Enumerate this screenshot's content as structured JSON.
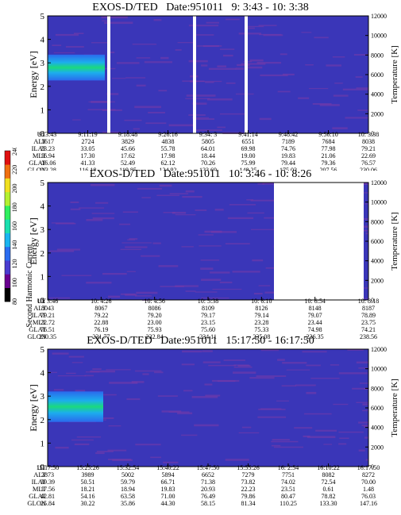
{
  "colors": {
    "background_plot": "#3a36b8",
    "streak": "#7a3aa8",
    "cold_core": "#19e27a",
    "gap": "#ffffff"
  },
  "colorbar": {
    "label": "Second Harmonic Current",
    "ticks": [
      "80",
      "100",
      "120",
      "140",
      "160",
      "180",
      "200",
      "220",
      "240"
    ],
    "levels": [
      "#000000",
      "#6a0090",
      "#4a3cd0",
      "#2a6cf0",
      "#1ab4f0",
      "#1ae0b0",
      "#30f060",
      "#b4f030",
      "#f0e020",
      "#f07010",
      "#e01010"
    ]
  },
  "panels": [
    {
      "title": "EXOS-D/TED   Date:951011   9: 3:43 - 10: 3:38",
      "ylabel_left": "Energy [eV]",
      "ylabel_right": "Temperature [K]",
      "yticks_left": [
        "0",
        "1",
        "2",
        "3",
        "4",
        "5"
      ],
      "yticks_right": [
        "0",
        "2000",
        "4000",
        "6000",
        "8000",
        "10000",
        "12000"
      ],
      "eph_labels": [
        "UT",
        "ALT",
        "ILAT",
        "MLT",
        "GLAT",
        "GLON"
      ],
      "eph_values": [
        [
          "9: 3:43",
          "9:11:19",
          "9:18:48",
          "9:26:16",
          "9:34: 3",
          "9:41:14",
          "9:48:42",
          "9:56:10",
          "10: 3:38"
        ],
        [
          "1617",
          "2724",
          "3829",
          "4838",
          "5805",
          "6551",
          "7189",
          "7684",
          "8038"
        ],
        [
          "23.23",
          "33.05",
          "45.66",
          "55.78",
          "64.01",
          "69.98",
          "74.76",
          "77.98",
          "79.21"
        ],
        [
          "16.94",
          "17.30",
          "17.62",
          "17.98",
          "18.44",
          "19.00",
          "19.83",
          "21.06",
          "22.69"
        ],
        [
          "-16.06",
          "41.33",
          "52.49",
          "62.12",
          "70.26",
          "75.99",
          "79.44",
          "79.36",
          "76.57"
        ],
        [
          "113.28",
          "116.18",
          "119.85",
          "124.92",
          "133.69",
          "148.35",
          "175.03",
          "207.56",
          "230.06"
        ]
      ],
      "chart_data": {
        "type": "heatmap",
        "x": [
          "9: 3:43",
          "9:11:19",
          "9:18:48",
          "9:26:16",
          "9:34: 3",
          "9:41:14",
          "9:48:42",
          "9:56:10",
          "10: 3:38"
        ],
        "ylabel": "Energy [eV]",
        "ylim": [
          0,
          5
        ],
        "y2label": "Temperature [K]",
        "y2lim": [
          0,
          12000
        ],
        "features": [
          "enhanced emission near 1.5-2.5 eV at start",
          "data gaps near 9:19, 9:34 and 9:42"
        ]
      }
    },
    {
      "title": "EXOS-D/TED   Date:951011   10: 3:46 - 10: 8:26",
      "ylabel_left": "Energy [eV]",
      "ylabel_right": "Temperature [K]",
      "yticks_left": [
        "0",
        "1",
        "2",
        "3",
        "4",
        "5"
      ],
      "yticks_right": [
        "0",
        "2000",
        "4000",
        "6000",
        "8000",
        "10000",
        "12000"
      ],
      "eph_labels": [
        "UT",
        "ALT",
        "ILAT",
        "MLT",
        "GLAT",
        "GLON"
      ],
      "eph_values": [
        [
          "10: 3:46",
          "10: 4:26",
          "10: 4:56",
          "10: 5:38",
          "10: 6:10",
          "10: 6:54",
          "10: 8:18"
        ],
        [
          "8043",
          "8067",
          "8086",
          "8109",
          "8126",
          "8148",
          "8187"
        ],
        [
          "79.21",
          "79.22",
          "79.20",
          "79.17",
          "79.14",
          "79.07",
          "78.89"
        ],
        [
          "22.72",
          "22.88",
          "23.00",
          "23.15",
          "23.28",
          "23.44",
          "23.75"
        ],
        [
          "76.51",
          "76.19",
          "75.93",
          "75.60",
          "75.33",
          "74.98",
          "74.21"
        ],
        [
          "230.35",
          "231.77",
          "232.84",
          "234.11",
          "235.08",
          "236.35",
          "238.56"
        ]
      ],
      "chart_data": {
        "type": "heatmap",
        "x": [
          "10: 3:46",
          "10: 4:26",
          "10: 4:56",
          "10: 5:38",
          "10: 6:10",
          "10: 6:54",
          "10: 8:18"
        ],
        "ylabel": "Energy [eV]",
        "ylim": [
          0,
          5
        ],
        "y2label": "Temperature [K]",
        "y2lim": [
          0,
          12000
        ],
        "features": [
          "data gap from about 10:6:54 to 10:8:18"
        ]
      }
    },
    {
      "title": "EXOS-D/TED   Date:951011   15:17:50 - 16:17:50",
      "ylabel_left": "Energy [eV]",
      "ylabel_right": "Temperature [K]",
      "yticks_left": [
        "0",
        "1",
        "2",
        "3",
        "4",
        "5"
      ],
      "yticks_right": [
        "0",
        "2000",
        "4000",
        "6000",
        "8000",
        "10000",
        "12000"
      ],
      "eph_labels": [
        "UT",
        "ALT",
        "ILAT",
        "MLT",
        "GLAT",
        "GLON"
      ],
      "eph_values": [
        [
          "15:17:50",
          "15:25:26",
          "15:32:54",
          "15:40:22",
          "15:47:50",
          "15:55:26",
          "16: 2:54",
          "16:10:22",
          "16:17:50"
        ],
        [
          "2873",
          "3989",
          "5002",
          "5894",
          "6652",
          "7279",
          "7751",
          "8082",
          "8272"
        ],
        [
          "39.39",
          "50.51",
          "59.79",
          "66.71",
          "71.38",
          "73.82",
          "74.02",
          "72.54",
          "70.00"
        ],
        [
          "17.56",
          "18.21",
          "18.94",
          "19.83",
          "20.93",
          "22.23",
          "23.51",
          "0.61",
          "1.48"
        ],
        [
          "42.81",
          "54.16",
          "63.58",
          "71.00",
          "76.49",
          "79.86",
          "80.47",
          "78.82",
          "76.03"
        ],
        [
          "25.84",
          "30.22",
          "35.86",
          "44.30",
          "58.15",
          "81.34",
          "110.25",
          "133.30",
          "147.16"
        ]
      ],
      "chart_data": {
        "type": "heatmap",
        "x": [
          "15:17:50",
          "15:25:26",
          "15:32:54",
          "15:40:22",
          "15:47:50",
          "15:55:26",
          "16: 2:54",
          "16:10:22",
          "16:17:50"
        ],
        "ylabel": "Energy [eV]",
        "ylim": [
          0,
          5
        ],
        "y2label": "Temperature [K]",
        "y2lim": [
          0,
          12000
        ],
        "features": [
          "enhanced emission near 1-2.5 eV at start"
        ]
      }
    }
  ]
}
